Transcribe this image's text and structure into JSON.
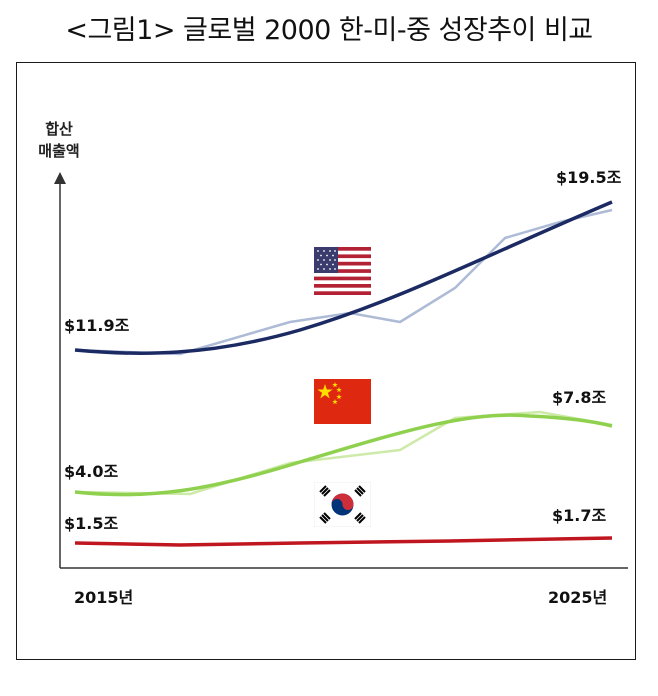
{
  "title": "<그림1> 글로벌 2000 한-미-중 성장추이 비교",
  "colors": {
    "us": "#1b2a63",
    "china": "#8fd14f",
    "korea": "#c0161f",
    "axis": "#333333"
  },
  "chart_data": {
    "type": "line",
    "ylabel": [
      "합산",
      "매출액"
    ],
    "x": [
      "2015년",
      "2025년"
    ],
    "series": [
      {
        "name": "US",
        "icon": "us-flag-icon",
        "start_label": "$11.9조",
        "end_label": "$19.5조",
        "values": [
          11.9,
          19.5
        ]
      },
      {
        "name": "China",
        "icon": "china-flag-icon",
        "start_label": "$4.0조",
        "end_label": "$7.8조",
        "values": [
          4.0,
          7.8
        ]
      },
      {
        "name": "Korea",
        "icon": "korea-flag-icon",
        "start_label": "$1.5조",
        "end_label": "$1.7조",
        "values": [
          1.5,
          1.7
        ]
      }
    ],
    "grid": false,
    "legend": "flags"
  }
}
